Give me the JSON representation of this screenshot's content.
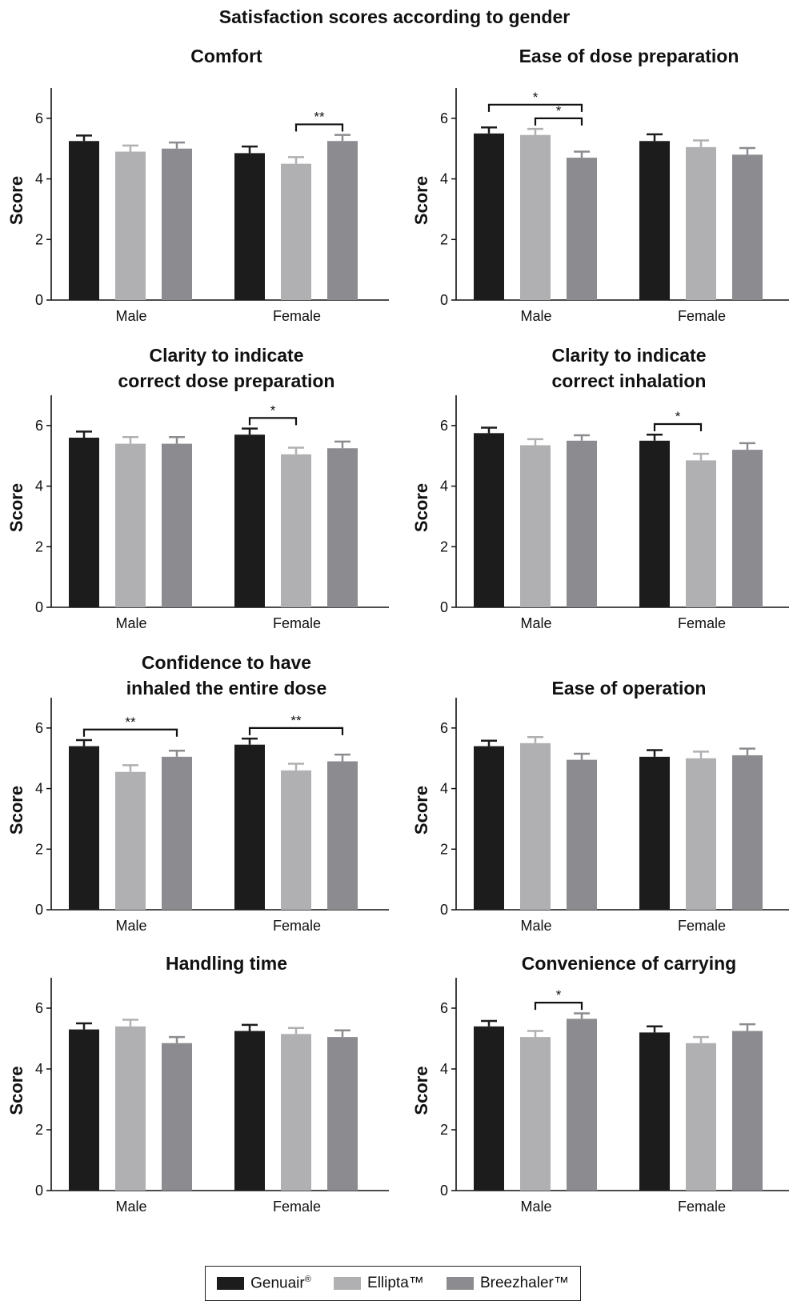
{
  "figure_title": "Satisfaction scores according to gender",
  "colors": {
    "genuair": "#1c1c1c",
    "ellipta": "#b0b0b3",
    "breezhaler": "#8c8c90"
  },
  "legend": [
    {
      "name": "Genuair",
      "mark": "®",
      "color": "#1c1c1c"
    },
    {
      "name": "Ellipta",
      "mark": "™",
      "color": "#b0b0b3"
    },
    {
      "name": "Breezhaler",
      "mark": "™",
      "color": "#8c8c90"
    }
  ],
  "chart_data": [
    {
      "type": "bar",
      "title": [
        "Comfort"
      ],
      "ylabel": "Score",
      "ylim": [
        0,
        7
      ],
      "yticks": [
        "0",
        "2",
        "4",
        "6"
      ],
      "categories": [
        "Male",
        "Female"
      ],
      "series": [
        {
          "name": "Genuair®",
          "values": [
            5.25,
            4.85
          ],
          "errors": [
            0.18,
            0.22
          ]
        },
        {
          "name": "Ellipta™",
          "values": [
            4.9,
            4.5
          ],
          "errors": [
            0.2,
            0.22
          ]
        },
        {
          "name": "Breezhaler™",
          "values": [
            5.0,
            5.25
          ],
          "errors": [
            0.2,
            0.2
          ]
        }
      ],
      "significance": [
        {
          "category": 1,
          "from": 1,
          "to": 2,
          "label": "**"
        }
      ]
    },
    {
      "type": "bar",
      "title": [
        "Ease of dose preparation"
      ],
      "ylabel": "Score",
      "ylim": [
        0,
        7
      ],
      "yticks": [
        "0",
        "2",
        "4",
        "6"
      ],
      "categories": [
        "Male",
        "Female"
      ],
      "series": [
        {
          "name": "Genuair®",
          "values": [
            5.5,
            5.25
          ],
          "errors": [
            0.2,
            0.22
          ]
        },
        {
          "name": "Ellipta™",
          "values": [
            5.45,
            5.05
          ],
          "errors": [
            0.2,
            0.22
          ]
        },
        {
          "name": "Breezhaler™",
          "values": [
            4.7,
            4.8
          ],
          "errors": [
            0.2,
            0.22
          ]
        }
      ],
      "significance": [
        {
          "category": 0,
          "from": 0,
          "to": 2,
          "label": "*"
        },
        {
          "category": 0,
          "from": 1,
          "to": 2,
          "label": "*"
        }
      ]
    },
    {
      "type": "bar",
      "title": [
        "Clarity to indicate",
        "correct dose preparation"
      ],
      "ylabel": "Score",
      "ylim": [
        0,
        7
      ],
      "yticks": [
        "0",
        "2",
        "4",
        "6"
      ],
      "categories": [
        "Male",
        "Female"
      ],
      "series": [
        {
          "name": "Genuair®",
          "values": [
            5.6,
            5.7
          ],
          "errors": [
            0.2,
            0.2
          ]
        },
        {
          "name": "Ellipta™",
          "values": [
            5.4,
            5.05
          ],
          "errors": [
            0.22,
            0.22
          ]
        },
        {
          "name": "Breezhaler™",
          "values": [
            5.4,
            5.25
          ],
          "errors": [
            0.22,
            0.22
          ]
        }
      ],
      "significance": [
        {
          "category": 1,
          "from": 0,
          "to": 1,
          "label": "*"
        }
      ]
    },
    {
      "type": "bar",
      "title": [
        "Clarity to indicate",
        "correct inhalation"
      ],
      "ylabel": "Score",
      "ylim": [
        0,
        7
      ],
      "yticks": [
        "0",
        "2",
        "4",
        "6"
      ],
      "categories": [
        "Male",
        "Female"
      ],
      "series": [
        {
          "name": "Genuair®",
          "values": [
            5.75,
            5.5
          ],
          "errors": [
            0.18,
            0.2
          ]
        },
        {
          "name": "Ellipta™",
          "values": [
            5.35,
            4.85
          ],
          "errors": [
            0.2,
            0.22
          ]
        },
        {
          "name": "Breezhaler™",
          "values": [
            5.5,
            5.2
          ],
          "errors": [
            0.18,
            0.22
          ]
        }
      ],
      "significance": [
        {
          "category": 1,
          "from": 0,
          "to": 1,
          "label": "*"
        }
      ]
    },
    {
      "type": "bar",
      "title": [
        "Confidence to have",
        "inhaled the entire dose"
      ],
      "ylabel": "Score",
      "ylim": [
        0,
        7
      ],
      "yticks": [
        "0",
        "2",
        "4",
        "6"
      ],
      "categories": [
        "Male",
        "Female"
      ],
      "series": [
        {
          "name": "Genuair®",
          "values": [
            5.4,
            5.45
          ],
          "errors": [
            0.2,
            0.2
          ]
        },
        {
          "name": "Ellipta™",
          "values": [
            4.55,
            4.6
          ],
          "errors": [
            0.22,
            0.22
          ]
        },
        {
          "name": "Breezhaler™",
          "values": [
            5.05,
            4.9
          ],
          "errors": [
            0.2,
            0.22
          ]
        }
      ],
      "significance": [
        {
          "category": 0,
          "from": 0,
          "to": 2,
          "label": "**"
        },
        {
          "category": 1,
          "from": 0,
          "to": 2,
          "label": "**"
        }
      ]
    },
    {
      "type": "bar",
      "title": [
        "Ease of operation"
      ],
      "ylabel": "Score",
      "ylim": [
        0,
        7
      ],
      "yticks": [
        "0",
        "2",
        "4",
        "6"
      ],
      "categories": [
        "Male",
        "Female"
      ],
      "series": [
        {
          "name": "Genuair®",
          "values": [
            5.4,
            5.05
          ],
          "errors": [
            0.18,
            0.22
          ]
        },
        {
          "name": "Ellipta™",
          "values": [
            5.5,
            5.0
          ],
          "errors": [
            0.2,
            0.22
          ]
        },
        {
          "name": "Breezhaler™",
          "values": [
            4.95,
            5.1
          ],
          "errors": [
            0.2,
            0.22
          ]
        }
      ],
      "significance": []
    },
    {
      "type": "bar",
      "title": [
        "Handling time"
      ],
      "ylabel": "Score",
      "ylim": [
        0,
        7
      ],
      "yticks": [
        "0",
        "2",
        "4",
        "6"
      ],
      "categories": [
        "Male",
        "Female"
      ],
      "series": [
        {
          "name": "Genuair®",
          "values": [
            5.3,
            5.25
          ],
          "errors": [
            0.2,
            0.2
          ]
        },
        {
          "name": "Ellipta™",
          "values": [
            5.4,
            5.15
          ],
          "errors": [
            0.22,
            0.2
          ]
        },
        {
          "name": "Breezhaler™",
          "values": [
            4.85,
            5.05
          ],
          "errors": [
            0.2,
            0.22
          ]
        }
      ],
      "significance": []
    },
    {
      "type": "bar",
      "title": [
        "Convenience of carrying"
      ],
      "ylabel": "Score",
      "ylim": [
        0,
        7
      ],
      "yticks": [
        "0",
        "2",
        "4",
        "6"
      ],
      "categories": [
        "Male",
        "Female"
      ],
      "series": [
        {
          "name": "Genuair®",
          "values": [
            5.4,
            5.2
          ],
          "errors": [
            0.18,
            0.2
          ]
        },
        {
          "name": "Ellipta™",
          "values": [
            5.05,
            4.85
          ],
          "errors": [
            0.2,
            0.2
          ]
        },
        {
          "name": "Breezhaler™",
          "values": [
            5.65,
            5.25
          ],
          "errors": [
            0.18,
            0.22
          ]
        }
      ],
      "significance": [
        {
          "category": 0,
          "from": 1,
          "to": 2,
          "label": "*"
        }
      ]
    }
  ]
}
